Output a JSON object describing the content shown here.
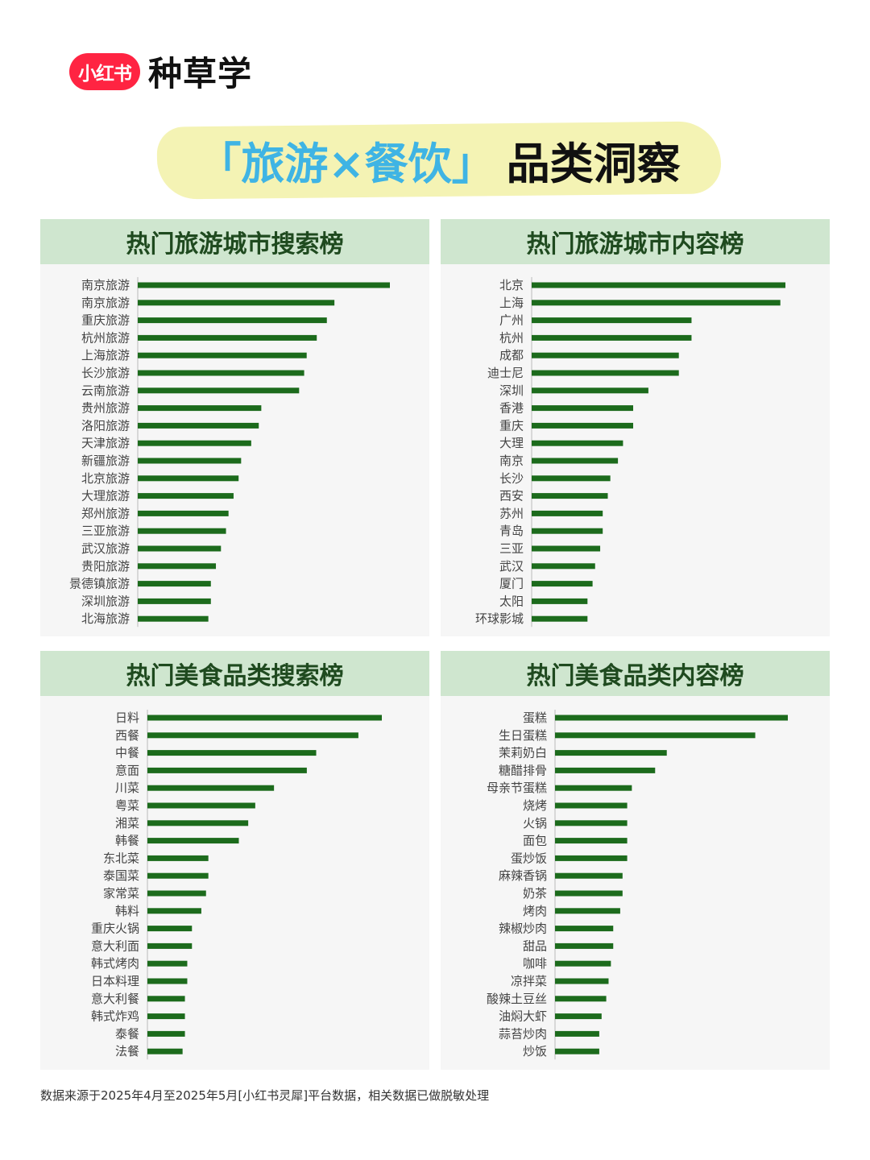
{
  "brand": {
    "badge": "小红书",
    "name": "种草学"
  },
  "title": {
    "highlight": "「旅游×餐饮」",
    "rest": "品类洞察"
  },
  "footnote": "数据来源于2025年4月至2025年5月[小红书灵犀]平台数据，相关数据已做脱敏处理",
  "colors": {
    "bar": "#1c6b1c",
    "header": "#cfe6cf",
    "accent": "#3fb4e4",
    "brand": "#ff2442"
  },
  "chart_data": [
    {
      "type": "bar",
      "orientation": "horizontal",
      "title": "热门旅游城市搜索榜",
      "categories": [
        "南京旅游",
        "南京旅游",
        "重庆旅游",
        "杭州旅游",
        "上海旅游",
        "长沙旅游",
        "云南旅游",
        "贵州旅游",
        "洛阳旅游",
        "天津旅游",
        "新疆旅游",
        "北京旅游",
        "大理旅游",
        "郑州旅游",
        "三亚旅游",
        "武汉旅游",
        "贵阳旅游",
        "景德镇旅游",
        "深圳旅游",
        "北海旅游"
      ],
      "values": [
        100,
        78,
        75,
        71,
        67,
        66,
        64,
        49,
        48,
        45,
        41,
        40,
        38,
        36,
        35,
        33,
        31,
        29,
        29,
        28
      ],
      "xlim": [
        0,
        100
      ]
    },
    {
      "type": "bar",
      "orientation": "horizontal",
      "title": "热门旅游城市内容榜",
      "categories": [
        "北京",
        "上海",
        "广州",
        "杭州",
        "成都",
        "迪士尼",
        "深圳",
        "香港",
        "重庆",
        "大理",
        "南京",
        "长沙",
        "西安",
        "苏州",
        "青岛",
        "三亚",
        "武汉",
        "厦门",
        "太阳",
        "环球影城"
      ],
      "values": [
        100,
        98,
        63,
        63,
        58,
        58,
        46,
        40,
        40,
        36,
        34,
        31,
        30,
        28,
        28,
        27,
        25,
        24,
        22,
        22
      ],
      "xlim": [
        0,
        100
      ]
    },
    {
      "type": "bar",
      "orientation": "horizontal",
      "title": "热门美食品类搜索榜",
      "categories": [
        "日料",
        "西餐",
        "中餐",
        "意面",
        "川菜",
        "粤菜",
        "湘菜",
        "韩餐",
        "东北菜",
        "泰国菜",
        "家常菜",
        "韩料",
        "重庆火锅",
        "意大利面",
        "韩式烤肉",
        "日本料理",
        "意大利餐",
        "韩式炸鸡",
        "泰餐",
        "法餐"
      ],
      "values": [
        100,
        90,
        72,
        68,
        54,
        46,
        43,
        39,
        26,
        26,
        25,
        23,
        19,
        19,
        17,
        17,
        16,
        16,
        16,
        15
      ],
      "xlim": [
        0,
        100
      ]
    },
    {
      "type": "bar",
      "orientation": "horizontal",
      "title": "热门美食品类内容榜",
      "categories": [
        "蛋糕",
        "生日蛋糕",
        "茉莉奶白",
        "糖醋排骨",
        "母亲节蛋糕",
        "烧烤",
        "火锅",
        "面包",
        "蛋炒饭",
        "麻辣香锅",
        "奶茶",
        "烤肉",
        "辣椒炒肉",
        "甜品",
        "咖啡",
        "凉拌菜",
        "酸辣土豆丝",
        "油焖大虾",
        "蒜苔炒肉",
        "炒饭"
      ],
      "values": [
        100,
        86,
        48,
        43,
        33,
        31,
        31,
        31,
        31,
        29,
        29,
        28,
        25,
        25,
        24,
        23,
        22,
        20,
        19,
        19
      ],
      "xlim": [
        0,
        100
      ]
    }
  ]
}
